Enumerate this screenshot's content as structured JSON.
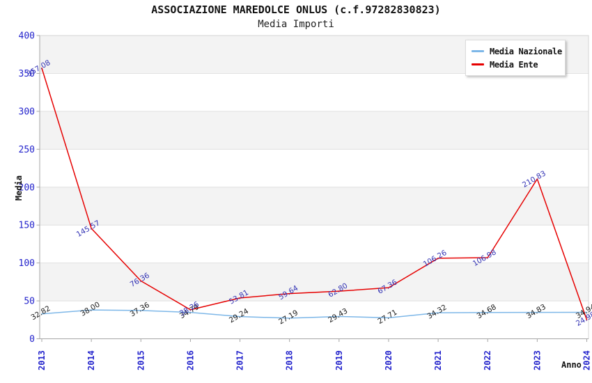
{
  "chart_data": {
    "type": "line",
    "title": "ASSOCIAZIONE MAREDOLCE ONLUS (c.f.97282830823)",
    "subtitle": "Media Importi",
    "xlabel": "Anno",
    "ylabel": "Media",
    "ylim": [
      0,
      400
    ],
    "ytick_step": 50,
    "grid": true,
    "legend_position": "top-right",
    "categories": [
      "2013",
      "2014",
      "2015",
      "2016",
      "2017",
      "2018",
      "2019",
      "2020",
      "2021",
      "2022",
      "2023",
      "2024"
    ],
    "series": [
      {
        "name": "Media Nazionale",
        "color": "#7db7e8",
        "label_color": "#1a1a1a",
        "values": [
          32.82,
          38.0,
          37.36,
          34.79,
          29.24,
          27.19,
          29.43,
          27.71,
          34.32,
          34.68,
          34.83,
          34.94
        ]
      },
      {
        "name": "Media Ente",
        "color": "#e60000",
        "label_color": "#3232b4",
        "values": [
          357.08,
          145.57,
          76.36,
          38.26,
          53.81,
          59.64,
          62.8,
          67.36,
          106.26,
          106.98,
          210.83,
          24.98
        ]
      }
    ]
  },
  "colors": {
    "band": "#f3f3f3",
    "grid": "#e1e1e1",
    "frame": "#d4d4d4",
    "axis": "#a6a6a6",
    "tick_label": "#2323cc",
    "background": "#ffffff"
  }
}
